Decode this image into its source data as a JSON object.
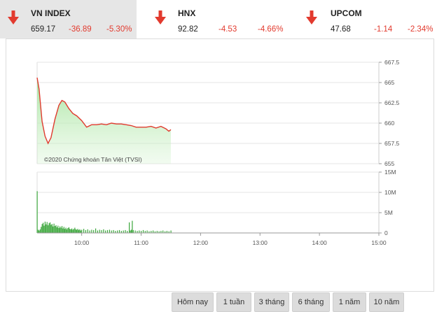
{
  "indices": [
    {
      "name": "VN INDEX",
      "value": "659.17",
      "change": "-36.89",
      "percent": "-5.30%",
      "direction": "down",
      "active": true
    },
    {
      "name": "HNX",
      "value": "92.82",
      "change": "-4.53",
      "percent": "-4.66%",
      "direction": "down",
      "active": false
    },
    {
      "name": "UPCOM",
      "value": "47.68",
      "change": "-1.14",
      "percent": "-2.34%",
      "direction": "down",
      "active": false
    }
  ],
  "colors": {
    "down": "#e23a2e",
    "price_line": "#e03a2e",
    "price_fill": "#c9f0c4",
    "volume_bar": "#3aa63a"
  },
  "chart_data": [
    {
      "type": "area",
      "watermark": "©2020 Chứng khoán Tân Việt (TVSI)",
      "x_ticks": [
        "10:00",
        "11:00",
        "12:00",
        "13:00",
        "14:00",
        "15:00"
      ],
      "x_range": [
        "09:15",
        "15:00"
      ],
      "y_ticks": [
        "667.5",
        "665",
        "662.5",
        "660",
        "657.5",
        "655"
      ],
      "ylim": [
        655,
        667.5
      ],
      "grid": true,
      "series": [
        {
          "points": [
            [
              "09:15",
              665.6
            ],
            [
              "09:17",
              664.2
            ],
            [
              "09:20",
              660.2
            ],
            [
              "09:23",
              658.4
            ],
            [
              "09:26",
              657.5
            ],
            [
              "09:29",
              658.2
            ],
            [
              "09:33",
              660.5
            ],
            [
              "09:37",
              662.2
            ],
            [
              "09:40",
              662.8
            ],
            [
              "09:43",
              662.6
            ],
            [
              "09:47",
              661.8
            ],
            [
              "09:51",
              661.2
            ],
            [
              "09:55",
              660.9
            ],
            [
              "10:00",
              660.3
            ],
            [
              "10:05",
              659.5
            ],
            [
              "10:10",
              659.8
            ],
            [
              "10:15",
              659.8
            ],
            [
              "10:20",
              659.9
            ],
            [
              "10:25",
              659.8
            ],
            [
              "10:30",
              660.0
            ],
            [
              "10:35",
              659.9
            ],
            [
              "10:40",
              659.9
            ],
            [
              "10:45",
              659.8
            ],
            [
              "10:50",
              659.7
            ],
            [
              "10:55",
              659.5
            ],
            [
              "11:00",
              659.5
            ],
            [
              "11:05",
              659.5
            ],
            [
              "11:10",
              659.6
            ],
            [
              "11:15",
              659.4
            ],
            [
              "11:20",
              659.6
            ],
            [
              "11:25",
              659.3
            ],
            [
              "11:28",
              659.0
            ],
            [
              "11:30",
              659.2
            ]
          ]
        }
      ]
    },
    {
      "type": "bar",
      "x_ticks": [
        "10:00",
        "11:00",
        "12:00",
        "13:00",
        "14:00",
        "15:00"
      ],
      "x_range": [
        "09:15",
        "15:00"
      ],
      "y_ticks": [
        "15M",
        "10M",
        "5M",
        "0"
      ],
      "ylim": [
        0,
        15000000
      ],
      "grid": true,
      "series": [
        {
          "points": [
            [
              "09:15",
              10300000
            ],
            [
              "09:16",
              800000
            ],
            [
              "09:17",
              600000
            ],
            [
              "09:18",
              900000
            ],
            [
              "09:19",
              1500000
            ],
            [
              "09:20",
              2200000
            ],
            [
              "09:21",
              2500000
            ],
            [
              "09:22",
              1800000
            ],
            [
              "09:23",
              2800000
            ],
            [
              "09:24",
              2100000
            ],
            [
              "09:25",
              2700000
            ],
            [
              "09:26",
              1900000
            ],
            [
              "09:27",
              2400000
            ],
            [
              "09:28",
              2600000
            ],
            [
              "09:29",
              2000000
            ],
            [
              "09:30",
              2200000
            ],
            [
              "09:31",
              1600000
            ],
            [
              "09:32",
              2300000
            ],
            [
              "09:33",
              1700000
            ],
            [
              "09:34",
              1900000
            ],
            [
              "09:35",
              1400000
            ],
            [
              "09:36",
              1800000
            ],
            [
              "09:37",
              1200000
            ],
            [
              "09:38",
              1600000
            ],
            [
              "09:39",
              1300000
            ],
            [
              "09:40",
              1700000
            ],
            [
              "09:41",
              1100000
            ],
            [
              "09:42",
              1500000
            ],
            [
              "09:43",
              1000000
            ],
            [
              "09:44",
              1300000
            ],
            [
              "09:45",
              900000
            ],
            [
              "09:46",
              1200000
            ],
            [
              "09:47",
              1400000
            ],
            [
              "09:48",
              1000000
            ],
            [
              "09:49",
              900000
            ],
            [
              "09:50",
              1100000
            ],
            [
              "09:51",
              800000
            ],
            [
              "09:52",
              1000000
            ],
            [
              "09:53",
              1300000
            ],
            [
              "09:54",
              900000
            ],
            [
              "09:55",
              800000
            ],
            [
              "09:56",
              1000000
            ],
            [
              "09:57",
              700000
            ],
            [
              "09:58",
              900000
            ],
            [
              "09:59",
              600000
            ],
            [
              "10:00",
              800000
            ],
            [
              "10:02",
              1000000
            ],
            [
              "10:04",
              700000
            ],
            [
              "10:06",
              900000
            ],
            [
              "10:08",
              600000
            ],
            [
              "10:10",
              800000
            ],
            [
              "10:12",
              700000
            ],
            [
              "10:14",
              1100000
            ],
            [
              "10:16",
              600000
            ],
            [
              "10:18",
              800000
            ],
            [
              "10:20",
              700000
            ],
            [
              "10:22",
              900000
            ],
            [
              "10:24",
              600000
            ],
            [
              "10:26",
              700000
            ],
            [
              "10:28",
              800000
            ],
            [
              "10:30",
              600000
            ],
            [
              "10:32",
              700000
            ],
            [
              "10:34",
              500000
            ],
            [
              "10:36",
              600000
            ],
            [
              "10:38",
              700000
            ],
            [
              "10:40",
              500000
            ],
            [
              "10:42",
              600000
            ],
            [
              "10:44",
              700000
            ],
            [
              "10:46",
              500000
            ],
            [
              "10:48",
              2600000
            ],
            [
              "10:49",
              600000
            ],
            [
              "10:50",
              800000
            ],
            [
              "10:51",
              3000000
            ],
            [
              "10:52",
              700000
            ],
            [
              "10:54",
              600000
            ],
            [
              "10:56",
              500000
            ],
            [
              "10:58",
              600000
            ],
            [
              "11:00",
              500000
            ],
            [
              "11:02",
              700000
            ],
            [
              "11:04",
              500000
            ],
            [
              "11:06",
              600000
            ],
            [
              "11:08",
              400000
            ],
            [
              "11:10",
              500000
            ],
            [
              "11:12",
              600000
            ],
            [
              "11:14",
              400000
            ],
            [
              "11:16",
              500000
            ],
            [
              "11:18",
              400000
            ],
            [
              "11:20",
              500000
            ],
            [
              "11:22",
              600000
            ],
            [
              "11:24",
              400000
            ],
            [
              "11:26",
              500000
            ],
            [
              "11:28",
              400000
            ],
            [
              "11:30",
              600000
            ]
          ]
        }
      ]
    }
  ],
  "range_buttons": [
    "Hôm nay",
    "1 tuần",
    "3 tháng",
    "6 tháng",
    "1 năm",
    "10 năm"
  ]
}
